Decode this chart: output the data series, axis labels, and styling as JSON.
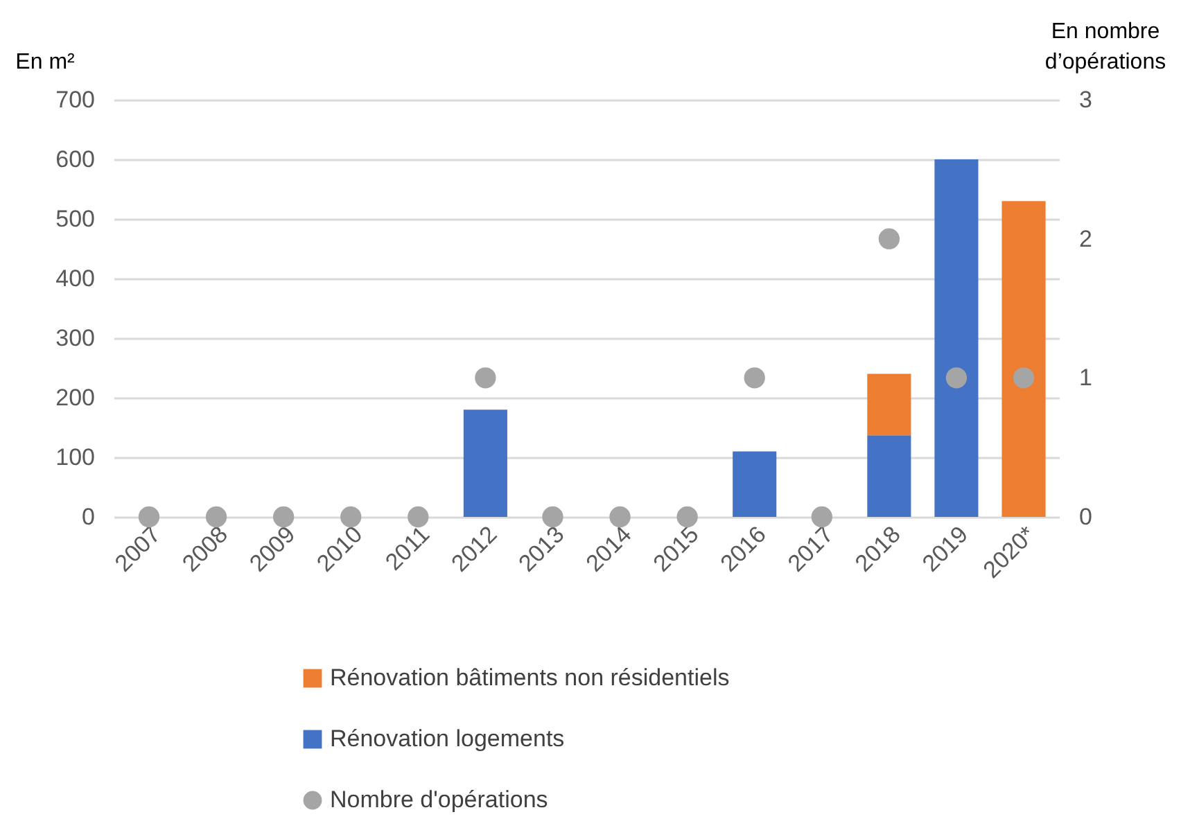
{
  "chart_data": {
    "type": "bar",
    "stacked": true,
    "ylabel": "En m²",
    "y2label": "En nombre d’opérations",
    "categories": [
      "2007",
      "2008",
      "2009",
      "2010",
      "2011",
      "2012",
      "2013",
      "2014",
      "2015",
      "2016",
      "2017",
      "2018",
      "2019",
      "2020*"
    ],
    "series": [
      {
        "name": "Rénovation logements",
        "color": "#4472c4",
        "values": [
          0,
          0,
          0,
          0,
          0,
          180,
          0,
          0,
          0,
          110,
          0,
          137,
          600,
          0
        ]
      },
      {
        "name": "Rénovation bâtiments non résidentiels",
        "color": "#ed7d31",
        "values": [
          0,
          0,
          0,
          0,
          0,
          0,
          0,
          0,
          0,
          0,
          0,
          103,
          0,
          530
        ]
      },
      {
        "name": "Nombre d'opérations",
        "type": "scatter",
        "axis": "y2",
        "marker": "circle",
        "color": "#a5a5a5",
        "values": [
          0,
          0,
          0,
          0,
          0,
          1,
          0,
          0,
          0,
          1,
          0,
          2,
          1,
          1
        ]
      }
    ],
    "ylim": [
      0,
      700
    ],
    "yticks": [
      0,
      100,
      200,
      300,
      400,
      500,
      600,
      700
    ],
    "y2lim": [
      0,
      3
    ],
    "y2ticks": [
      0,
      1,
      2,
      3
    ],
    "grid": "y",
    "legend": "bottom"
  }
}
